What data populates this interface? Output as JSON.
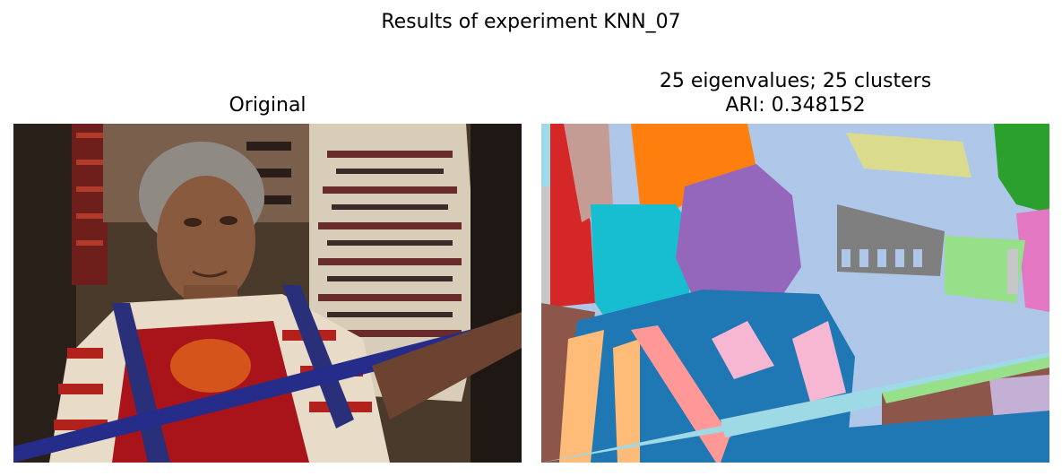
{
  "figure": {
    "suptitle": "Results of experiment KNN_07"
  },
  "panels": [
    {
      "title": "Original",
      "content": "photo of a woman weaving with colorful textiles"
    },
    {
      "title_line1": "25 eigenvalues; 25 clusters",
      "title_line2": "ARI: 0.348152",
      "content": "segmentation map"
    }
  ],
  "colors": {
    "blue": "#1f77b4",
    "orange": "#ff7f0e",
    "green": "#2ca02c",
    "red": "#d62728",
    "purple": "#9467bd",
    "brown": "#8c564b",
    "pink": "#e377c2",
    "gray": "#7f7f7f",
    "olive": "#bcbd22",
    "cyan": "#17becf",
    "lightblue": "#aec7e8",
    "lightorange": "#ffbb78",
    "lightgreen": "#98df8a",
    "lightred": "#ff9896",
    "lightpurple": "#c5b0d5",
    "lightbrown": "#c49c94",
    "lightpink": "#f7b6d2",
    "lightgray": "#c7c7c7",
    "lightolive": "#dbdb8d",
    "lightcyan": "#9edae5"
  }
}
